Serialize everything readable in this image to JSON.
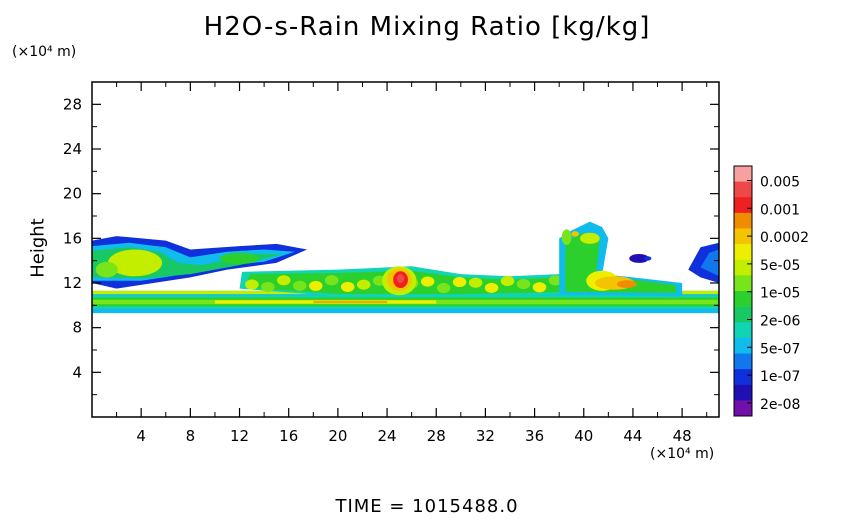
{
  "chart_data": {
    "type": "heatmap",
    "title": "H2O-s-Rain Mixing Ratio [kg/kg]",
    "ylabel": "Height",
    "x_unit": "(×10⁴ m)",
    "y_unit": "(×10⁴ m)",
    "xlim": [
      0,
      51
    ],
    "ylim": [
      0,
      30
    ],
    "x_ticks": [
      "4",
      "8",
      "12",
      "16",
      "20",
      "24",
      "28",
      "32",
      "36",
      "40",
      "44",
      "48"
    ],
    "y_ticks": [
      "4",
      "8",
      "12",
      "16",
      "20",
      "24",
      "28"
    ],
    "colorbar": {
      "labels": [
        "0.005",
        "0.001",
        "0.0002",
        "5e-05",
        "1e-05",
        "2e-06",
        "5e-07",
        "1e-07",
        "2e-08"
      ],
      "colors": [
        "#f6a0a0",
        "#ee4848",
        "#ee2020",
        "#f08c00",
        "#f4c400",
        "#eeee00",
        "#c4ee00",
        "#78e41c",
        "#2cd02c",
        "#18c864",
        "#10d4b4",
        "#10bcec",
        "#1078ec",
        "#1030dc",
        "#2010b4",
        "#7010a8"
      ]
    },
    "features": [
      {
        "name": "lower uniform layer",
        "x": [
          0,
          51
        ],
        "y": [
          9.3,
          11.3
        ],
        "level": "1e-05"
      },
      {
        "name": "left upper patch",
        "x": [
          0,
          17.5
        ],
        "y": [
          12,
          16
        ],
        "level": "5e-05"
      },
      {
        "name": "mid cloud band",
        "x": [
          12,
          40
        ],
        "y": [
          10.5,
          13.3
        ],
        "level": "1e-05"
      },
      {
        "name": "core near x=25",
        "x": [
          24,
          26
        ],
        "y": [
          11,
          13.5
        ],
        "level": "0.001"
      },
      {
        "name": "right tower near x=40",
        "x": [
          38,
          42
        ],
        "y": [
          10.5,
          17.5
        ],
        "level": "1e-05"
      },
      {
        "name": "right edge patch",
        "x": [
          48.5,
          51
        ],
        "y": [
          11.5,
          15.5
        ],
        "level": "5e-07"
      }
    ],
    "time_label": "TIME = 1015488.0"
  }
}
